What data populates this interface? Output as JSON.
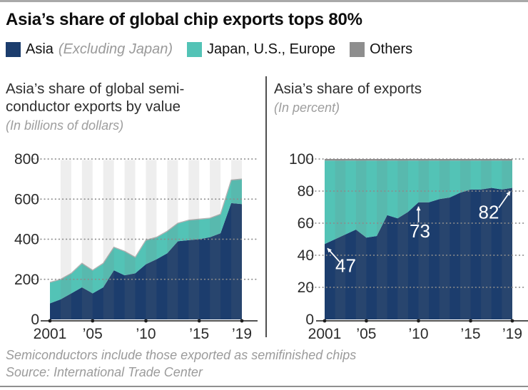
{
  "page": {
    "title": "Asia’s share of global chip exports tops 80%"
  },
  "palette": {
    "asia": "#1c3d6d",
    "japan_us_europe": "#53c3b6",
    "others": "#8e8e8e",
    "stripe_band": "#e9e9e9",
    "grid_dot": "#8c8c8c",
    "axis": "#3a3a3a",
    "annotation_text": "#ffffff"
  },
  "legend": {
    "items": [
      {
        "label": "Asia",
        "note": "(Excluding Japan)",
        "color_key": "asia"
      },
      {
        "label": "Japan, U.S., Europe",
        "note": "",
        "color_key": "japan_us_europe"
      },
      {
        "label": "Others",
        "note": "",
        "color_key": "others"
      }
    ]
  },
  "footer": {
    "note": "Semiconductors include those exported as semifinished chips",
    "source": "Source: International Trade Center"
  },
  "chart_data": [
    {
      "id": "export-value",
      "type": "area",
      "stacked": true,
      "title_lines": [
        "Asia’s share of global semi-",
        "conductor exports by value"
      ],
      "subtitle": "(In billions of dollars)",
      "years": [
        2001,
        2002,
        2003,
        2004,
        2005,
        2006,
        2007,
        2008,
        2009,
        2010,
        2011,
        2012,
        2013,
        2014,
        2015,
        2016,
        2017,
        2018,
        2019
      ],
      "series": [
        {
          "name": "Asia (Excluding Japan)",
          "key": "asia",
          "values": [
            80,
            100,
            130,
            160,
            130,
            160,
            245,
            220,
            230,
            275,
            300,
            330,
            390,
            395,
            400,
            410,
            430,
            580,
            575
          ]
        },
        {
          "name": "Japan, U.S., Europe",
          "key": "japan_us_europe",
          "values": [
            105,
            100,
            100,
            120,
            115,
            120,
            115,
            120,
            80,
            120,
            110,
            110,
            90,
            100,
            100,
            95,
            95,
            115,
            125
          ]
        }
      ],
      "ylim": [
        0,
        800
      ],
      "yticks": [
        0,
        200,
        400,
        600,
        800
      ],
      "ytick_labels": [
        "0",
        "200",
        "400",
        "600",
        "800"
      ],
      "xticks": [
        {
          "year": 2001,
          "label": "2001"
        },
        {
          "year": 2005,
          "label": "’05"
        },
        {
          "year": 2010,
          "label": "’10"
        },
        {
          "year": 2015,
          "label": "’15"
        },
        {
          "year": 2019,
          "label": "’19"
        }
      ],
      "grid": "dotted-horizontal",
      "background_bands": "alternate-years",
      "annotations": []
    },
    {
      "id": "export-share",
      "type": "area",
      "stacked": true,
      "title_lines": [
        "Asia’s share of exports"
      ],
      "subtitle": "(In percent)",
      "years": [
        2001,
        2002,
        2003,
        2004,
        2005,
        2006,
        2007,
        2008,
        2009,
        2010,
        2011,
        2012,
        2013,
        2014,
        2015,
        2016,
        2017,
        2018,
        2019
      ],
      "series": [
        {
          "name": "Asia (Excluding Japan)",
          "key": "asia",
          "values": [
            47,
            50,
            53,
            56,
            51,
            52,
            65,
            63,
            67,
            73,
            73,
            75,
            76,
            79,
            81,
            81,
            82,
            81,
            82
          ]
        },
        {
          "name": "Japan, U.S., Europe",
          "key": "japan_us_europe",
          "values": [
            52,
            49,
            46,
            43,
            48,
            47,
            34,
            36,
            32,
            26,
            26,
            24,
            23,
            20,
            18,
            18,
            17,
            18,
            17
          ]
        },
        {
          "name": "Others",
          "key": "others",
          "values": [
            1,
            1,
            1,
            1,
            1,
            1,
            1,
            1,
            1,
            1,
            1,
            1,
            1,
            1,
            1,
            1,
            1,
            1,
            1
          ]
        }
      ],
      "ylim": [
        0,
        100
      ],
      "yticks": [
        0,
        20,
        40,
        60,
        80,
        100
      ],
      "ytick_labels": [
        "0",
        "20",
        "40",
        "60",
        "80",
        "100"
      ],
      "xticks": [
        {
          "year": 2001,
          "label": "2001"
        },
        {
          "year": 2005,
          "label": "’05"
        },
        {
          "year": 2010,
          "label": "’10"
        },
        {
          "year": 2015,
          "label": "’15"
        },
        {
          "year": 2019,
          "label": "’19"
        }
      ],
      "grid": "dotted-horizontal",
      "background_bands": "alternate-years",
      "annotations": [
        {
          "year": 2001,
          "value": 47,
          "label": "47",
          "placement": "below-right"
        },
        {
          "year": 2010,
          "value": 73,
          "label": "73",
          "placement": "below"
        },
        {
          "year": 2019,
          "value": 82,
          "label": "82",
          "placement": "below-left"
        }
      ]
    }
  ]
}
